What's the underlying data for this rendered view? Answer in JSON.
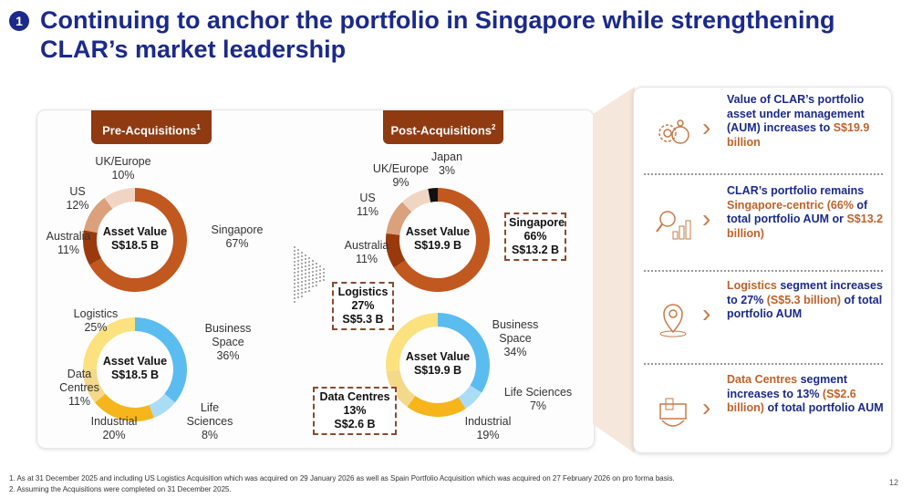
{
  "header": {
    "number": "1",
    "title": "Continuing to anchor the portfolio in Singapore while strengthening CLAR’s market leadership"
  },
  "pre": {
    "label": "Pre-Acquisitions",
    "sup": "1"
  },
  "post": {
    "label": "Post-Acquisitions",
    "sup": "2"
  },
  "colors": {
    "brand_blue": "#1b2a8a",
    "brand_brown": "#8f3a10",
    "accent_orange": "#c0622a"
  },
  "chart_data": [
    {
      "type": "pie",
      "variant": "donut",
      "name": "pre-geography",
      "center_label": [
        "Asset Value",
        "S$18.5 B"
      ],
      "categories": [
        "Singapore",
        "Australia",
        "US",
        "UK/Europe"
      ],
      "values": [
        67,
        11,
        12,
        10
      ],
      "colors": [
        "#c0581f",
        "#9a3a0c",
        "#dba07c",
        "#f1d5c3"
      ],
      "labels": [
        "Singapore\n67%",
        "Australia\n11%",
        "US\n12%",
        "UK/Europe\n10%"
      ]
    },
    {
      "type": "pie",
      "variant": "donut",
      "name": "pre-sector",
      "center_label": [
        "Asset Value",
        "S$18.5 B"
      ],
      "categories": [
        "Business Space",
        "Life Sciences",
        "Industrial",
        "Data Centres",
        "Logistics"
      ],
      "values": [
        36,
        8,
        20,
        11,
        25
      ],
      "colors": [
        "#5bbcf0",
        "#aadcf6",
        "#f5b51b",
        "#f5d98a",
        "#fbe27e"
      ],
      "labels": [
        "Business\nSpace\n36%",
        "Life\nSciences\n8%",
        "Industrial\n20%",
        "Data\nCentres\n11%",
        "Logistics\n25%"
      ]
    },
    {
      "type": "pie",
      "variant": "donut",
      "name": "post-geography",
      "center_label": [
        "Asset Value",
        "S$19.9 B"
      ],
      "categories": [
        "Singapore",
        "Australia",
        "US",
        "UK/Europe",
        "Japan"
      ],
      "values": [
        66,
        11,
        11,
        9,
        3
      ],
      "colors": [
        "#c0581f",
        "#9a3a0c",
        "#dba07c",
        "#f1d5c3",
        "#111111"
      ],
      "labels": [
        "Singapore\n66%\nS$13.2 B",
        "Australia\n11%",
        "US\n11%",
        "UK/Europe\n9%",
        "Japan\n3%"
      ]
    },
    {
      "type": "pie",
      "variant": "donut",
      "name": "post-sector",
      "center_label": [
        "Asset Value",
        "S$19.9 B"
      ],
      "categories": [
        "Business Space",
        "Life Sciences",
        "Industrial",
        "Data Centres",
        "Logistics"
      ],
      "values": [
        34,
        7,
        19,
        13,
        27
      ],
      "colors": [
        "#5bbcf0",
        "#aadcf6",
        "#f5b51b",
        "#f5d98a",
        "#fbe27e"
      ],
      "labels": [
        "Business\nSpace\n34%",
        "Life Sciences\n7%",
        "Industrial\n19%",
        "Data Centres\n13%\nS$2.6 B",
        "Logistics\n27%\nS$5.3 B"
      ]
    }
  ],
  "highlights": [
    {
      "icon": "gear-money-icon",
      "parts": [
        [
          "Value of CLAR’s portfolio asset under management (AUM) increases to ",
          false
        ],
        [
          "S$19.9 billion",
          true
        ]
      ]
    },
    {
      "icon": "magnifier-chart-icon",
      "parts": [
        [
          "CLAR’s portfolio remains ",
          false
        ],
        [
          "Singapore-centric (66% ",
          true
        ],
        [
          "of total portfolio AUM or ",
          false
        ],
        [
          "S$13.2 billion)",
          true
        ]
      ]
    },
    {
      "icon": "location-pin-icon",
      "parts": [
        [
          "Logistics",
          true
        ],
        [
          " segment increases to 27% ",
          false
        ],
        [
          "(S$5.3 billion)",
          true
        ],
        [
          " of total portfolio AUM",
          false
        ]
      ]
    },
    {
      "icon": "data-centre-icon",
      "parts": [
        [
          "Data Centres",
          true
        ],
        [
          " segment increases to 13% ",
          false
        ],
        [
          "(S$2.6 billion)",
          true
        ],
        [
          " of total portfolio AUM",
          false
        ]
      ]
    }
  ],
  "footnotes": [
    "1.   As at 31 December 2025 and including US Logistics Acquisition which was acquired on 29 January 2026 as well as Spain Portfolio Acquisition which was acquired on 27 February 2026 on pro forma basis.",
    "2.   Assuming the Acquisitions were completed on 31 December 2025."
  ],
  "page_number": "12"
}
